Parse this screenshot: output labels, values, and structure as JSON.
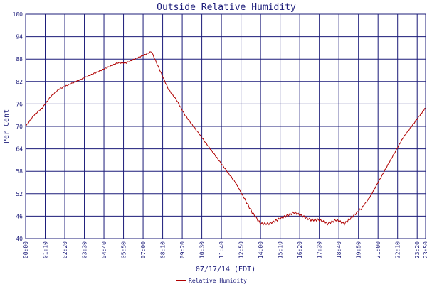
{
  "chart_data": {
    "type": "line",
    "title": "Outside Relative Humidity",
    "xlabel": "07/17/14 (EDT)",
    "ylabel": "Per Cent",
    "ylim": [
      40,
      100
    ],
    "yticks": [
      "40",
      "46",
      "52",
      "58",
      "64",
      "70",
      "76",
      "82",
      "88",
      "94",
      "100"
    ],
    "xticks": [
      "00:00",
      "01:10",
      "02:20",
      "03:30",
      "04:40",
      "05:50",
      "07:00",
      "08:10",
      "09:20",
      "10:30",
      "11:40",
      "12:50",
      "14:00",
      "15:10",
      "16:20",
      "17:30",
      "18:40",
      "19:50",
      "21:00",
      "22:10",
      "23:20",
      "23:50"
    ],
    "grid": true,
    "legend_position": "bottom-center",
    "series": [
      {
        "name": "Relative Humidity",
        "color": "#b00000",
        "x": [
          "00:00",
          "00:30",
          "01:00",
          "01:30",
          "02:00",
          "02:30",
          "03:00",
          "03:30",
          "04:00",
          "04:30",
          "05:00",
          "05:30",
          "06:00",
          "06:30",
          "07:00",
          "07:30",
          "08:00",
          "08:30",
          "09:00",
          "09:30",
          "10:00",
          "10:30",
          "11:00",
          "11:30",
          "12:00",
          "12:30",
          "13:00",
          "13:30",
          "14:00",
          "14:30",
          "15:00",
          "15:30",
          "16:00",
          "16:30",
          "17:00",
          "17:30",
          "18:00",
          "18:30",
          "19:00",
          "19:30",
          "20:00",
          "20:30",
          "21:00",
          "21:30",
          "22:00",
          "22:30",
          "23:00",
          "23:30",
          "23:50"
        ],
        "values": [
          70,
          73,
          75,
          78,
          80,
          81,
          82,
          83,
          84,
          85,
          86,
          87,
          87,
          88,
          89,
          90,
          85,
          80,
          77,
          73,
          70,
          67,
          64,
          61,
          58,
          55,
          51,
          47,
          44,
          44,
          45,
          46,
          47,
          46,
          45,
          45,
          44,
          45,
          44,
          46,
          48,
          51,
          55,
          59,
          63,
          67,
          70,
          73,
          75
        ]
      }
    ]
  }
}
